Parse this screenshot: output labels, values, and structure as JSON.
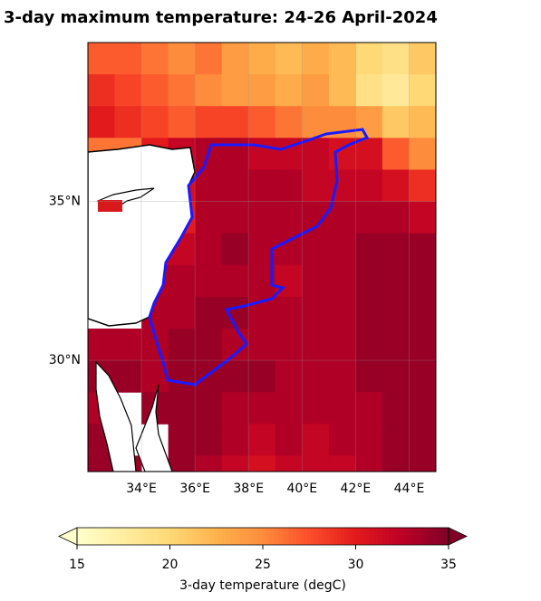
{
  "chart_data": {
    "type": "map",
    "title": "3-day maximum temperature: 24-26 April-2024",
    "xlim": [
      32,
      45
    ],
    "ylim": [
      26.5,
      40
    ],
    "xticks": [
      {
        "value": 34,
        "label": "34°E"
      },
      {
        "value": 36,
        "label": "36°E"
      },
      {
        "value": 38,
        "label": "38°E"
      },
      {
        "value": 40,
        "label": "40°E"
      },
      {
        "value": 42,
        "label": "42°E"
      },
      {
        "value": 44,
        "label": "44°E"
      }
    ],
    "yticks": [
      {
        "value": 30,
        "label": "30°N"
      },
      {
        "value": 35,
        "label": "35°N"
      }
    ],
    "grid": true,
    "cmap": "YlOrRd",
    "x": [
      32.5,
      33.5,
      34.5,
      35.5,
      36.5,
      37.5,
      38.5,
      39.5,
      40.5,
      41.5,
      42.5,
      43.5,
      44.5
    ],
    "y": [
      39.5,
      38.5,
      37.5,
      36.5,
      35.5,
      34.5,
      33.5,
      32.5,
      31.5,
      30.5,
      29.5,
      28.5,
      27.5,
      26.5
    ],
    "values": [
      [
        27,
        27,
        26,
        25,
        26,
        24,
        23,
        22,
        23,
        22,
        20,
        19,
        21
      ],
      [
        29,
        28,
        27,
        26,
        25,
        24,
        24,
        23,
        24,
        22,
        19,
        18,
        20
      ],
      [
        30,
        29,
        28,
        27,
        28,
        28,
        27,
        26,
        25,
        25,
        24,
        21,
        22
      ],
      [
        26,
        26,
        30,
        32,
        33,
        33,
        32,
        32,
        32,
        31,
        31,
        27,
        25
      ],
      [
        null,
        null,
        null,
        31,
        33,
        33,
        33,
        33,
        32,
        32,
        32,
        31,
        29
      ],
      [
        null,
        null,
        null,
        30,
        33,
        33,
        33,
        33,
        33,
        33,
        33,
        33,
        32
      ],
      [
        null,
        null,
        31,
        32,
        33,
        34,
        33,
        33,
        33,
        33,
        34,
        34,
        34
      ],
      [
        null,
        null,
        33,
        33,
        33,
        33,
        33,
        32,
        33,
        33,
        34,
        34,
        34
      ],
      [
        null,
        null,
        33,
        33,
        34,
        34,
        33,
        33,
        33,
        33,
        34,
        34,
        34
      ],
      [
        33,
        33,
        33,
        34,
        34,
        33,
        33,
        33,
        33,
        33,
        34,
        34,
        34
      ],
      [
        34,
        34,
        33,
        34,
        34,
        34,
        34,
        33,
        33,
        33,
        34,
        34,
        34
      ],
      [
        33,
        null,
        34,
        34,
        34,
        33,
        33,
        33,
        33,
        33,
        33,
        34,
        34
      ],
      [
        34,
        null,
        null,
        34,
        34,
        33,
        32,
        33,
        32,
        33,
        33,
        34,
        34
      ],
      [
        34,
        34,
        null,
        34,
        33,
        32,
        31,
        32,
        32,
        32,
        33,
        34,
        34
      ]
    ],
    "colorbar": {
      "clim": [
        15,
        35
      ],
      "ticks": [
        15,
        20,
        25,
        30,
        35
      ],
      "label": "3-day temperature (degC)"
    }
  }
}
